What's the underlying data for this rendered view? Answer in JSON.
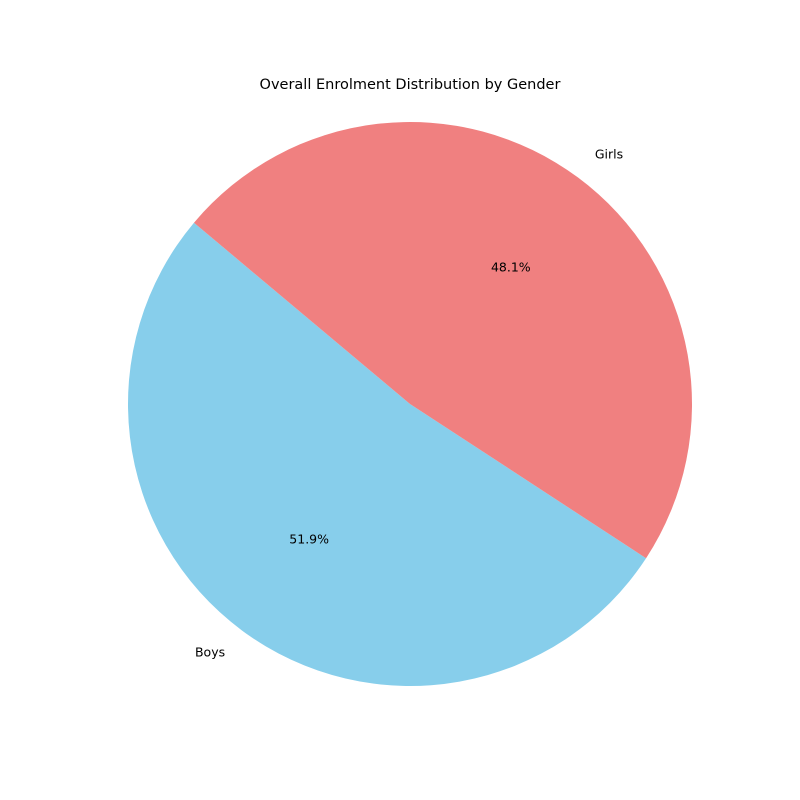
{
  "chart_data": {
    "type": "pie",
    "title": "Overall Enrolment Distribution by Gender",
    "slices": [
      {
        "label": "Boys",
        "value": 51.9,
        "value_label": "51.9%",
        "color": "#87ceeb"
      },
      {
        "label": "Girls",
        "value": 48.1,
        "value_label": "48.1%",
        "color": "#f08080"
      }
    ],
    "start_angle_deg": 140,
    "direction": "counterclockwise",
    "legend": "none"
  }
}
